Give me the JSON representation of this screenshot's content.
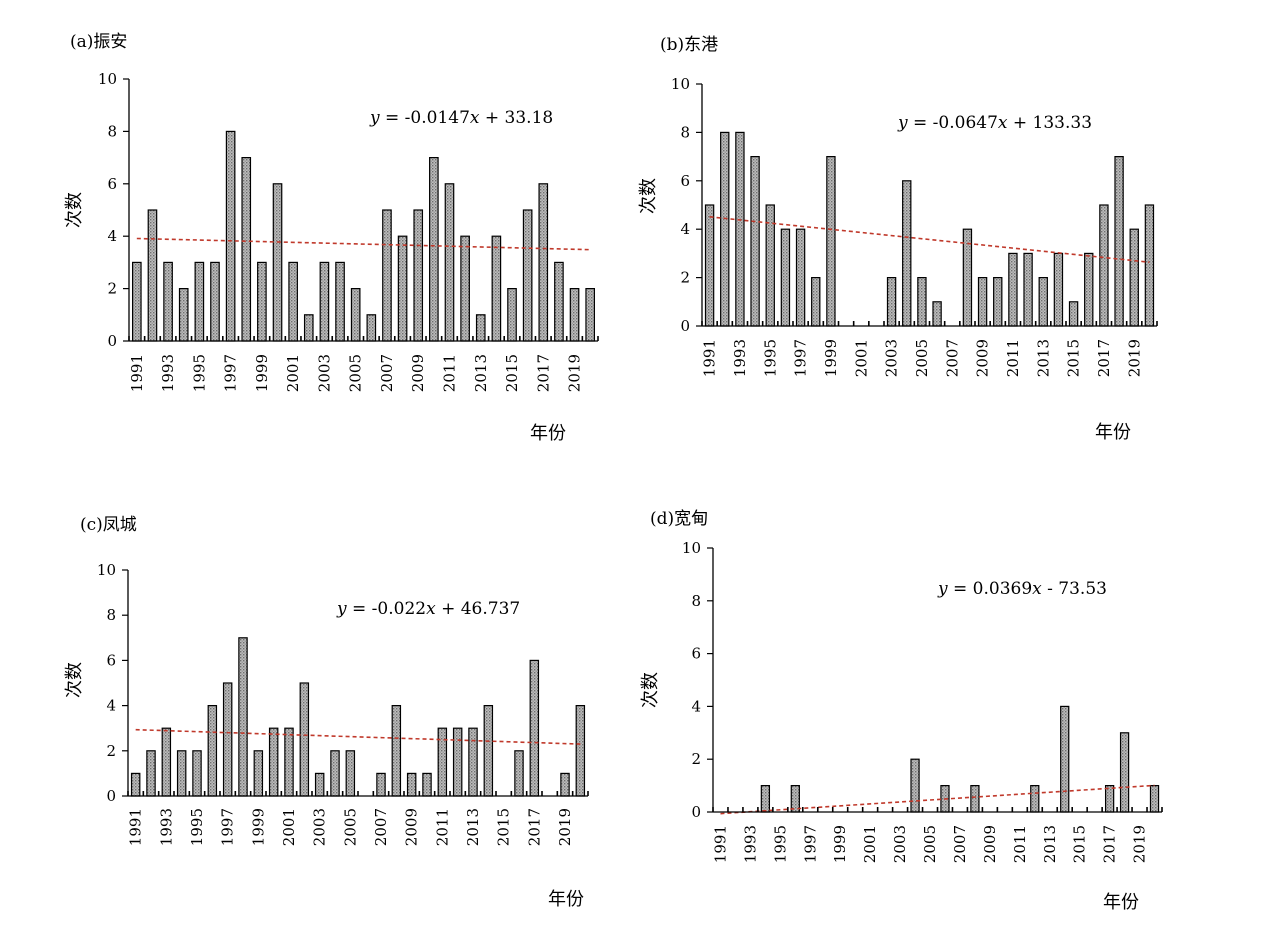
{
  "chart_data": [
    {
      "type": "bar",
      "title": "(a)振安",
      "ylabel": "次数",
      "xlabel": "年份",
      "ylim": [
        0,
        10
      ],
      "yticks": [
        "0",
        "2",
        "4",
        "6",
        "8",
        "10"
      ],
      "xtick_labels": [
        "1991",
        "1993",
        "1995",
        "1997",
        "1999",
        "2001",
        "2003",
        "2005",
        "2007",
        "2009",
        "2011",
        "2013",
        "2015",
        "2017",
        "2019"
      ],
      "x": [
        1991,
        1992,
        1993,
        1994,
        1995,
        1996,
        1997,
        1998,
        1999,
        2000,
        2001,
        2002,
        2003,
        2004,
        2005,
        2006,
        2007,
        2008,
        2009,
        2010,
        2011,
        2012,
        2013,
        2014,
        2015,
        2016,
        2017,
        2018,
        2019,
        2020
      ],
      "values": [
        3,
        5,
        3,
        2,
        3,
        3,
        8,
        7,
        3,
        6,
        3,
        1,
        3,
        3,
        2,
        1,
        5,
        4,
        5,
        7,
        6,
        4,
        1,
        4,
        2,
        5,
        6,
        3,
        2,
        2
      ],
      "trendline": {
        "slope": -0.0147,
        "intercept": 33.18
      },
      "equation": {
        "y": "y",
        "eq1": " = -0.0147",
        "x": "x",
        "eq2": " + 33.18"
      },
      "bar_fill": "#9a9a9a",
      "trend_color": "#c0392b",
      "grid": false
    },
    {
      "type": "bar",
      "title": "(b)东港",
      "ylabel": "次数",
      "xlabel": "年份",
      "ylim": [
        0,
        10
      ],
      "yticks": [
        "0",
        "2",
        "4",
        "6",
        "8",
        "10"
      ],
      "xtick_labels": [
        "1991",
        "1993",
        "1995",
        "1997",
        "1999",
        "2001",
        "2003",
        "2005",
        "2007",
        "2009",
        "2011",
        "2013",
        "2015",
        "2017",
        "2019"
      ],
      "x": [
        1991,
        1992,
        1993,
        1994,
        1995,
        1996,
        1997,
        1998,
        1999,
        2000,
        2001,
        2002,
        2003,
        2004,
        2005,
        2006,
        2007,
        2008,
        2009,
        2010,
        2011,
        2012,
        2013,
        2014,
        2015,
        2016,
        2017,
        2018,
        2019,
        2020
      ],
      "values": [
        5,
        8,
        8,
        7,
        5,
        4,
        4,
        2,
        7,
        0,
        0,
        0,
        2,
        6,
        2,
        1,
        0,
        4,
        2,
        2,
        3,
        3,
        2,
        3,
        1,
        3,
        5,
        7,
        4,
        5
      ],
      "trendline": {
        "slope": -0.0647,
        "intercept": 133.33
      },
      "equation": {
        "y": "y",
        "eq1": " = -0.0647",
        "x": "x",
        "eq2": " + 133.33"
      },
      "bar_fill": "#9a9a9a",
      "trend_color": "#c0392b",
      "grid": false
    },
    {
      "type": "bar",
      "title": "(c)凤城",
      "ylabel": "次数",
      "xlabel": "年份",
      "ylim": [
        0,
        10
      ],
      "yticks": [
        "0",
        "2",
        "4",
        "6",
        "8",
        "10"
      ],
      "xtick_labels": [
        "1991",
        "1993",
        "1995",
        "1997",
        "1999",
        "2001",
        "2003",
        "2005",
        "2007",
        "2009",
        "2011",
        "2013",
        "2015",
        "2017",
        "2019"
      ],
      "x": [
        1991,
        1992,
        1993,
        1994,
        1995,
        1996,
        1997,
        1998,
        1999,
        2000,
        2001,
        2002,
        2003,
        2004,
        2005,
        2006,
        2007,
        2008,
        2009,
        2010,
        2011,
        2012,
        2013,
        2014,
        2015,
        2016,
        2017,
        2018,
        2019,
        2020
      ],
      "values": [
        1,
        2,
        3,
        2,
        2,
        4,
        5,
        7,
        2,
        3,
        3,
        5,
        1,
        2,
        2,
        0,
        1,
        4,
        1,
        1,
        3,
        3,
        3,
        4,
        0,
        2,
        6,
        0,
        1,
        4
      ],
      "trendline": {
        "slope": -0.022,
        "intercept": 46.737
      },
      "equation": {
        "y": "y",
        "eq1": " = -0.022",
        "x": "x",
        "eq2": " + 46.737"
      },
      "bar_fill": "#9a9a9a",
      "trend_color": "#c0392b",
      "grid": false
    },
    {
      "type": "bar",
      "title": "(d)宽甸",
      "ylabel": "次数",
      "xlabel": "年份",
      "ylim": [
        0,
        10
      ],
      "yticks": [
        "0",
        "2",
        "4",
        "6",
        "8",
        "10"
      ],
      "xtick_labels": [
        "1991",
        "1993",
        "1995",
        "1997",
        "1999",
        "2001",
        "2003",
        "2005",
        "2007",
        "2009",
        "2011",
        "2013",
        "2015",
        "2017",
        "2019"
      ],
      "x": [
        1991,
        1992,
        1993,
        1994,
        1995,
        1996,
        1997,
        1998,
        1999,
        2000,
        2001,
        2002,
        2003,
        2004,
        2005,
        2006,
        2007,
        2008,
        2009,
        2010,
        2011,
        2012,
        2013,
        2014,
        2015,
        2016,
        2017,
        2018,
        2019,
        2020
      ],
      "values": [
        0,
        0,
        0,
        1,
        0,
        1,
        0,
        0,
        0,
        0,
        0,
        0,
        0,
        2,
        0,
        1,
        0,
        1,
        0,
        0,
        0,
        1,
        0,
        4,
        0,
        0,
        1,
        3,
        0,
        1
      ],
      "trendline": {
        "slope": 0.0369,
        "intercept": -73.53
      },
      "equation": {
        "y": "y",
        "eq1": " = 0.0369",
        "x": "x",
        "eq2": " - 73.53"
      },
      "bar_fill": "#9a9a9a",
      "trend_color": "#c0392b",
      "grid": false
    }
  ]
}
